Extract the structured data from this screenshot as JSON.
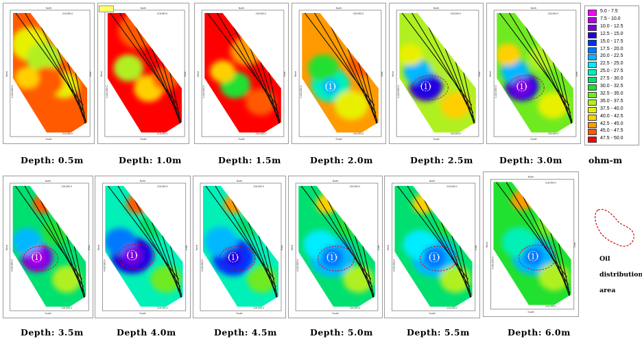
{
  "panels": [
    {
      "depth": "Depth: 0.5m",
      "anomaly": null,
      "oil": false
    },
    {
      "depth": "Depth: 1.0m",
      "anomaly": null,
      "oil": false
    },
    {
      "depth": "Depth: 1.5m",
      "anomaly": null,
      "oil": false
    },
    {
      "depth": "Depth: 2.0m",
      "anomaly": "(1)",
      "oil": false
    },
    {
      "depth": "Depth: 2.5m",
      "anomaly": "(1)",
      "oil": true
    },
    {
      "depth": "Depth: 3.0m",
      "anomaly": "(1)",
      "oil": true
    },
    {
      "depth": "Depth: 3.5m",
      "anomaly": "(1)",
      "oil": true
    },
    {
      "depth": "Depth 4.0m",
      "anomaly": "(1)",
      "oil": true
    },
    {
      "depth": "Depth: 4.5m",
      "anomaly": "(1)",
      "oil": true
    },
    {
      "depth": "Depth: 5.0m",
      "anomaly": "(1)",
      "oil": true
    },
    {
      "depth": "Depth: 5.5m",
      "anomaly": "(1)",
      "oil": true
    },
    {
      "depth": "Depth: 6.0m",
      "anomaly": "(1)",
      "oil": true
    }
  ],
  "legend": {
    "unit": "ohm-m",
    "items": [
      {
        "label": "5.0 - 7.5",
        "color": "#ff00ff"
      },
      {
        "label": "7.5 - 10.0",
        "color": "#b000e8"
      },
      {
        "label": "10.0 - 12.5",
        "color": "#7a00e0"
      },
      {
        "label": "12.5 - 15.0",
        "color": "#2000e0"
      },
      {
        "label": "15.0 - 17.5",
        "color": "#0030ff"
      },
      {
        "label": "17.5 - 20.0",
        "color": "#0078ff"
      },
      {
        "label": "20.0 - 22.5",
        "color": "#00b8ff"
      },
      {
        "label": "22.5 - 25.0",
        "color": "#00ecff"
      },
      {
        "label": "25.0 - 27.5",
        "color": "#00f0b8"
      },
      {
        "label": "27.5 - 30.0",
        "color": "#00e070"
      },
      {
        "label": "30.0 - 32.5",
        "color": "#20e030"
      },
      {
        "label": "32.5 - 35.0",
        "color": "#70ea20"
      },
      {
        "label": "35.0 - 37.5",
        "color": "#b0f020"
      },
      {
        "label": "37.5 - 40.0",
        "color": "#e8f000"
      },
      {
        "label": "40.0 - 42.5",
        "color": "#ffd000"
      },
      {
        "label": "42.5 - 45.0",
        "color": "#ff9a00"
      },
      {
        "label": "45.0 - 47.5",
        "color": "#ff5a00"
      },
      {
        "label": "47.5 - 50.0",
        "color": "#ff0000"
      }
    ]
  },
  "map_labels": {
    "north": "North",
    "south": "South",
    "east": "East",
    "west": "West",
    "easting": "218,950.0",
    "northing": "4,422,800.0"
  },
  "oil_legend": {
    "line1": "Oil",
    "line2": "distribution",
    "line3": "area",
    "line_color": "#e00000"
  }
}
